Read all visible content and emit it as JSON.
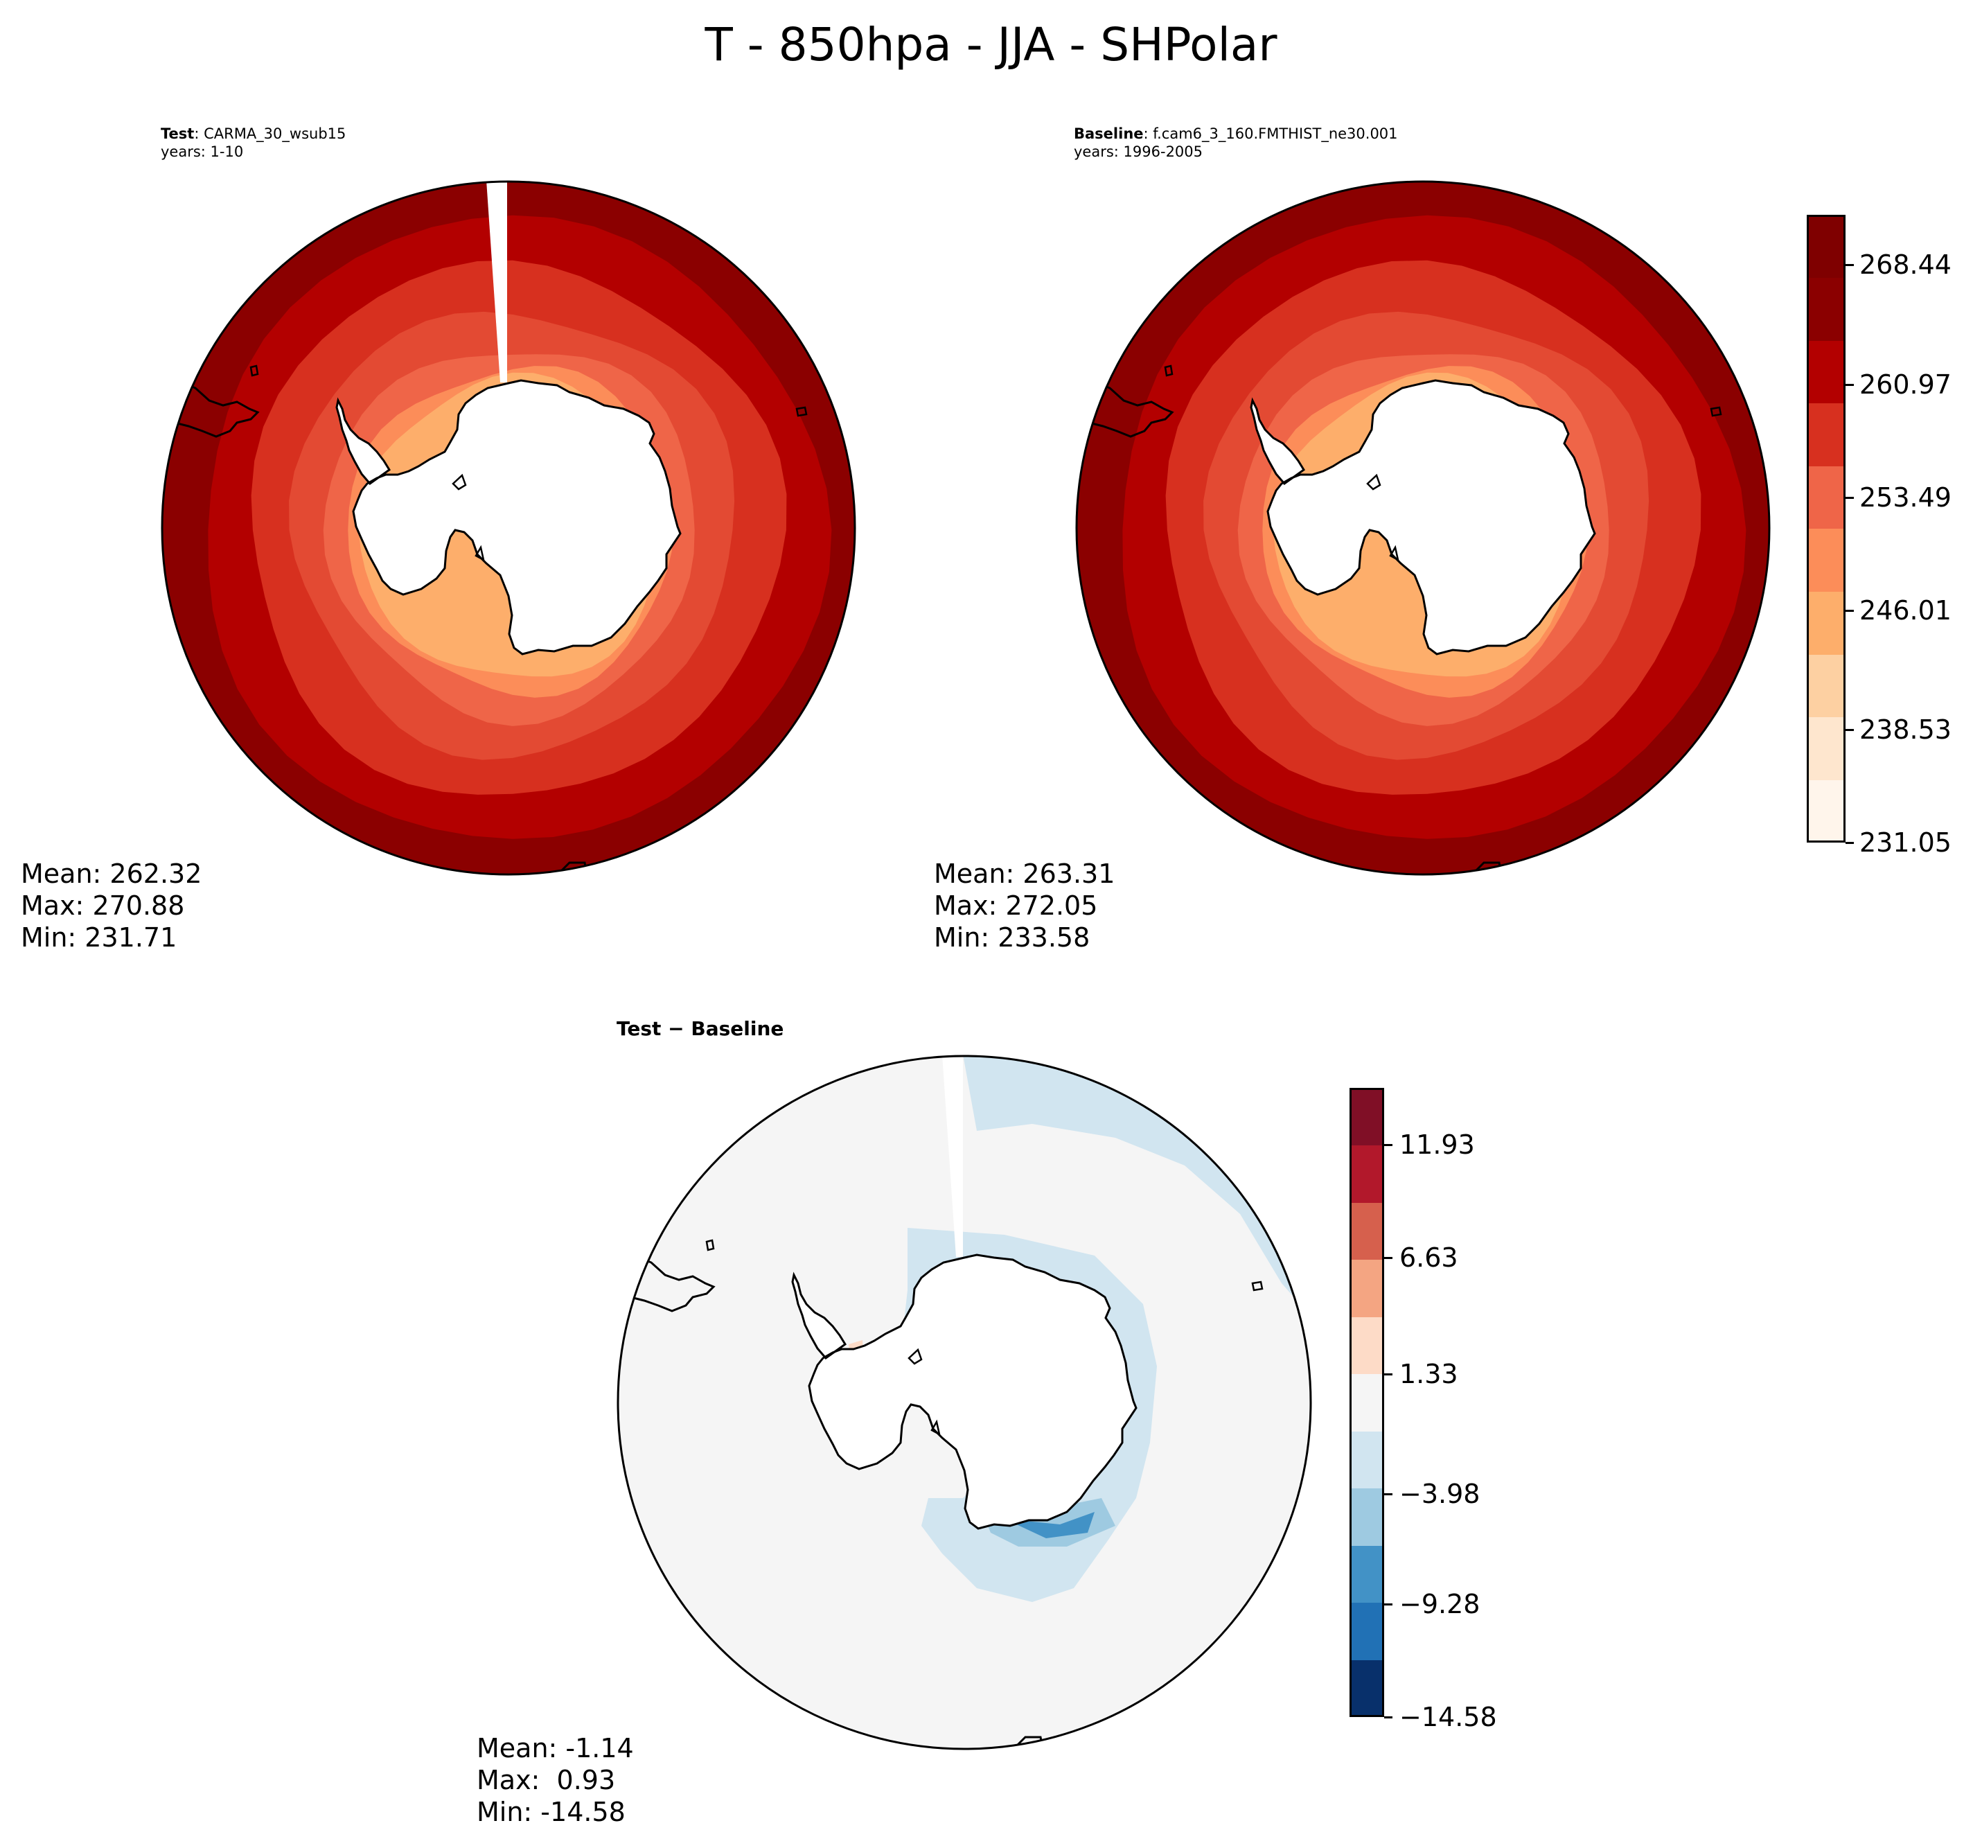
{
  "figure": {
    "title": "T - 850hpa - JJA - SHPolar"
  },
  "panels": {
    "test": {
      "label_bold": "Test",
      "label_rest": ": CARMA_30_wsub15",
      "years": "years: 1-10",
      "stats": {
        "mean": "Mean: 262.32",
        "max": "Max: 270.88",
        "min": "Min: 231.71"
      }
    },
    "baseline": {
      "label_bold": "Baseline",
      "label_rest": ": f.cam6_3_160.FMTHIST_ne30.001",
      "years": "years: 1996-2005",
      "stats": {
        "mean": "Mean: 263.31",
        "max": "Max: 272.05",
        "min": "Min: 233.58"
      }
    },
    "diff": {
      "title": "Test − Baseline",
      "stats": {
        "mean": "Mean: -1.14",
        "max": "Max:  0.93",
        "min": "Min: -14.58"
      }
    }
  },
  "colorbars": {
    "main": {
      "ticks": [
        "268.44",
        "260.97",
        "253.49",
        "246.01",
        "238.53",
        "231.05"
      ],
      "colors": [
        "#fff5eb",
        "#fee6ce",
        "#fdd0a2",
        "#fdae6b",
        "#fc8d59",
        "#ef6548",
        "#d7301f",
        "#b30000",
        "#8b0000",
        "#7f0000"
      ]
    },
    "diff": {
      "ticks": [
        "11.93",
        "6.63",
        "1.33",
        "−3.98",
        "−9.28",
        "−14.58"
      ],
      "colors": [
        "#08306b",
        "#2171b5",
        "#4292c6",
        "#9ecae1",
        "#d1e5f0",
        "#f5f5f5",
        "#fddbc7",
        "#f4a582",
        "#d6604d",
        "#b2182b",
        "#800f26"
      ]
    }
  },
  "map_colors": {
    "ring_outer": "#8b0000",
    "ring2": "#b30000",
    "ring3": "#d7301f",
    "ring4": "#e34a33",
    "ring5": "#ef6548",
    "ring6": "#fc8d59",
    "ring7": "#fdae6b",
    "land": "#ffffff",
    "diff_bg": "#f5f5f5",
    "diff_light_blue": "#d1e5f0",
    "diff_mid_blue": "#9ecae1",
    "diff_dark_blue": "#4292c6",
    "diff_light_red": "#fddbc7",
    "coast": "#000000"
  }
}
